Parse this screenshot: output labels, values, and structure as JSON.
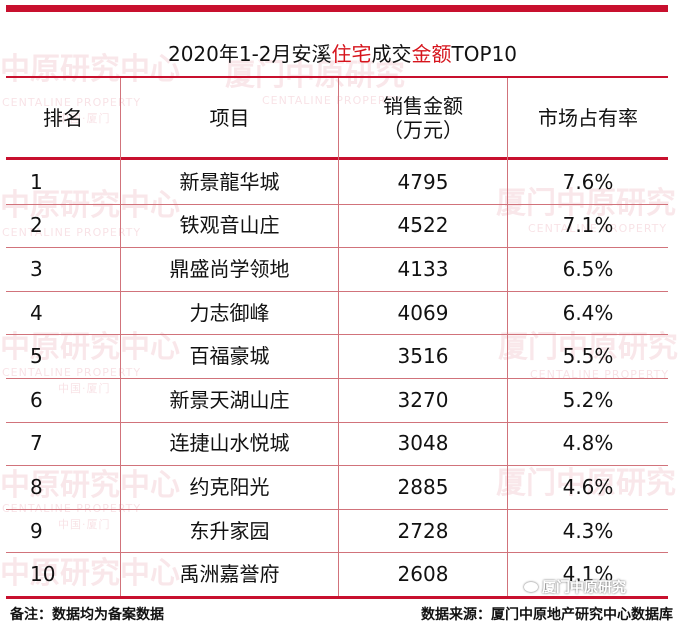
{
  "title": {
    "part1": "2020年1-2月安溪",
    "hl1": "住宅",
    "part2": "成交",
    "hl2": "金额",
    "part3": "TOP10"
  },
  "headers": {
    "rank": "排名",
    "project": "项目",
    "sales_line1": "销售金额",
    "sales_line2": "（万元）",
    "share": "市场占有率"
  },
  "rows": [
    {
      "rank": "1",
      "project": "新景龍华城",
      "sales": "4795",
      "share": "7.6%"
    },
    {
      "rank": "2",
      "project": "铁观音山庄",
      "sales": "4522",
      "share": "7.1%"
    },
    {
      "rank": "3",
      "project": "鼎盛尚学领地",
      "sales": "4133",
      "share": "6.5%"
    },
    {
      "rank": "4",
      "project": "力志御峰",
      "sales": "4069",
      "share": "6.4%"
    },
    {
      "rank": "5",
      "project": "百福豪城",
      "sales": "3516",
      "share": "5.5%"
    },
    {
      "rank": "6",
      "project": "新景天湖山庄",
      "sales": "3270",
      "share": "5.2%"
    },
    {
      "rank": "7",
      "project": "连捷山水悦城",
      "sales": "3048",
      "share": "4.8%"
    },
    {
      "rank": "8",
      "project": "约克阳光",
      "sales": "2885",
      "share": "4.6%"
    },
    {
      "rank": "9",
      "project": "东升家园",
      "sales": "2728",
      "share": "4.3%"
    },
    {
      "rank": "10",
      "project": "禹洲嘉誉府",
      "sales": "2608",
      "share": "4.1%"
    }
  ],
  "watermark": {
    "cn": "中原研究中心",
    "cn2": "厦门中原研究",
    "en": "CENTALINE PROPERTY",
    "city": "中国·厦门"
  },
  "footer": {
    "note": "备注：数据均为备案数据",
    "source": "数据来源：厦门中原地产研究中心数据库"
  },
  "badge": "厦门中原研究",
  "colors": {
    "accent": "#c8102e",
    "highlight": "#d6141c"
  }
}
